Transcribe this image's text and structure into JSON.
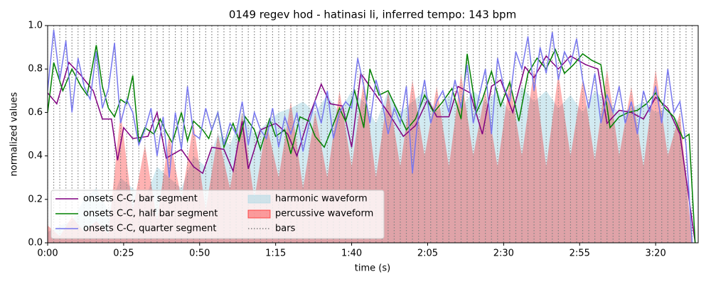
{
  "chart_data": {
    "type": "line",
    "title": "0149 regev hod - hatinasi li, inferred tempo: 143 bpm",
    "xlabel": "time (s)",
    "ylabel": "normalized values",
    "xlim": [
      0,
      214
    ],
    "ylim": [
      0,
      1
    ],
    "xticks": [
      {
        "value": 0,
        "label": "0:00"
      },
      {
        "value": 25,
        "label": "0:25"
      },
      {
        "value": 50,
        "label": "0:50"
      },
      {
        "value": 75,
        "label": "1:15"
      },
      {
        "value": 100,
        "label": "1:40"
      },
      {
        "value": 125,
        "label": "2:05"
      },
      {
        "value": 150,
        "label": "2:30"
      },
      {
        "value": 175,
        "label": "2:55"
      },
      {
        "value": 200,
        "label": "3:20"
      }
    ],
    "yticks": [
      {
        "value": 0,
        "label": "0.0"
      },
      {
        "value": 0.2,
        "label": "0.2"
      },
      {
        "value": 0.4,
        "label": "0.4"
      },
      {
        "value": 0.6,
        "label": "0.6"
      },
      {
        "value": 0.8,
        "label": "0.8"
      },
      {
        "value": 1,
        "label": "1.0"
      }
    ],
    "legend": "lower left",
    "areas": [
      {
        "name": "harmonic waveform",
        "color": "#add8e6",
        "x": [
          0,
          4,
          8,
          12,
          16,
          20,
          24,
          28,
          32,
          36,
          40,
          44,
          48,
          52,
          56,
          60,
          64,
          68,
          72,
          76,
          80,
          84,
          88,
          92,
          96,
          100,
          104,
          108,
          112,
          116,
          120,
          124,
          128,
          132,
          136,
          140,
          144,
          148,
          152,
          156,
          160,
          164,
          168,
          172,
          176,
          180,
          184,
          188,
          192,
          196,
          200,
          204,
          208,
          212
        ],
        "values": [
          0.05,
          0.08,
          0.1,
          0.2,
          0.25,
          0.15,
          0.3,
          0.25,
          0.2,
          0.35,
          0.3,
          0.25,
          0.4,
          0.35,
          0.5,
          0.45,
          0.6,
          0.5,
          0.55,
          0.6,
          0.62,
          0.65,
          0.6,
          0.68,
          0.6,
          0.7,
          0.65,
          0.55,
          0.7,
          0.6,
          0.65,
          0.7,
          0.6,
          0.68,
          0.62,
          0.7,
          0.65,
          0.7,
          0.6,
          0.72,
          0.65,
          0.7,
          0.62,
          0.68,
          0.6,
          0.7,
          0.65,
          0.6,
          0.62,
          0.65,
          0.6,
          0.62,
          0.55,
          0.0
        ]
      },
      {
        "name": "percussive waveform",
        "color": "#ff0000",
        "x": [
          0,
          4,
          8,
          12,
          16,
          20,
          24,
          28,
          32,
          36,
          40,
          44,
          48,
          52,
          56,
          60,
          64,
          68,
          72,
          76,
          80,
          84,
          88,
          92,
          96,
          100,
          104,
          108,
          112,
          116,
          120,
          124,
          128,
          132,
          136,
          140,
          144,
          148,
          152,
          156,
          160,
          164,
          168,
          172,
          176,
          180,
          184,
          188,
          192,
          196,
          200,
          204,
          208,
          212
        ],
        "values": [
          0.08,
          0.03,
          0.12,
          0.05,
          0.1,
          0.04,
          0.6,
          0.15,
          0.45,
          0.1,
          0.5,
          0.2,
          0.55,
          0.15,
          0.5,
          0.25,
          0.6,
          0.2,
          0.55,
          0.3,
          0.65,
          0.25,
          0.6,
          0.3,
          0.7,
          0.35,
          0.75,
          0.3,
          0.7,
          0.35,
          0.75,
          0.4,
          0.72,
          0.35,
          0.78,
          0.4,
          0.7,
          0.35,
          0.75,
          0.4,
          0.8,
          0.35,
          0.78,
          0.4,
          0.75,
          0.38,
          0.8,
          0.4,
          0.72,
          0.35,
          0.8,
          0.4,
          0.6,
          0.0
        ]
      }
    ],
    "bars": {
      "name": "bars",
      "color": "#808080",
      "x": [
        0,
        2,
        4,
        6,
        8,
        10,
        12,
        14,
        16,
        18,
        20,
        22,
        24,
        26,
        28,
        30,
        32,
        34,
        36,
        38,
        40,
        42,
        44,
        46,
        48,
        50,
        52,
        54,
        56,
        58,
        60,
        62,
        64,
        66,
        68,
        70,
        72,
        74,
        76,
        78,
        80,
        82,
        84,
        86,
        88,
        90,
        92,
        94,
        96,
        98,
        100,
        102,
        104,
        106,
        108,
        110,
        112,
        114,
        116,
        118,
        120,
        122,
        124,
        126,
        128,
        130,
        132,
        134,
        136,
        138,
        140,
        142,
        144,
        146,
        148,
        150,
        152,
        154,
        156,
        158,
        160,
        162,
        164,
        166,
        168,
        170,
        172,
        174,
        176,
        178,
        180,
        182,
        184,
        186,
        188,
        190,
        192,
        194,
        196,
        198,
        200,
        202,
        204,
        206,
        208,
        210,
        212
      ]
    },
    "series": [
      {
        "name": "onsets C-C, bar segment",
        "color": "#800080",
        "x": [
          0,
          3,
          7,
          11,
          15,
          18,
          21,
          23,
          25,
          28,
          33,
          36,
          39,
          44,
          48,
          51,
          54,
          58,
          61,
          64,
          66,
          70,
          75,
          79,
          82,
          86,
          90,
          93,
          97,
          100,
          103,
          107,
          112,
          117,
          121,
          125,
          128,
          132,
          135,
          139,
          143,
          146,
          149,
          153,
          157,
          160,
          164,
          168,
          172,
          177,
          181,
          184,
          188,
          192,
          196,
          200,
          204,
          208,
          213
        ],
        "values": [
          0.69,
          0.64,
          0.83,
          0.77,
          0.7,
          0.57,
          0.57,
          0.38,
          0.53,
          0.48,
          0.49,
          0.6,
          0.39,
          0.43,
          0.35,
          0.32,
          0.44,
          0.43,
          0.33,
          0.56,
          0.34,
          0.52,
          0.55,
          0.5,
          0.4,
          0.58,
          0.73,
          0.64,
          0.63,
          0.44,
          0.78,
          0.7,
          0.6,
          0.49,
          0.54,
          0.66,
          0.58,
          0.58,
          0.72,
          0.69,
          0.5,
          0.72,
          0.75,
          0.6,
          0.81,
          0.76,
          0.86,
          0.8,
          0.86,
          0.82,
          0.8,
          0.55,
          0.61,
          0.6,
          0.57,
          0.67,
          0.62,
          0.5,
          0.0
        ]
      },
      {
        "name": "onsets C-C, half bar segment",
        "color": "#008000",
        "x": [
          0,
          2,
          5,
          8,
          11,
          13,
          16,
          18,
          20,
          22,
          24,
          26,
          28,
          30,
          32,
          35,
          37,
          39,
          41,
          44,
          46,
          48,
          51,
          53,
          56,
          58,
          61,
          63,
          65,
          68,
          70,
          73,
          75,
          78,
          80,
          83,
          86,
          88,
          91,
          93,
          96,
          98,
          101,
          104,
          106,
          109,
          112,
          115,
          118,
          121,
          124,
          127,
          130,
          133,
          136,
          138,
          141,
          143,
          146,
          149,
          152,
          155,
          158,
          161,
          164,
          167,
          170,
          173,
          176,
          179,
          182,
          185,
          188,
          191,
          194,
          197,
          200,
          203,
          206,
          209,
          211,
          213
        ],
        "values": [
          0.6,
          0.83,
          0.7,
          0.8,
          0.72,
          0.68,
          0.91,
          0.72,
          0.62,
          0.58,
          0.66,
          0.64,
          0.77,
          0.46,
          0.53,
          0.5,
          0.57,
          0.51,
          0.46,
          0.6,
          0.47,
          0.56,
          0.52,
          0.48,
          0.6,
          0.44,
          0.55,
          0.47,
          0.58,
          0.52,
          0.43,
          0.57,
          0.49,
          0.52,
          0.41,
          0.58,
          0.56,
          0.49,
          0.44,
          0.51,
          0.62,
          0.56,
          0.7,
          0.53,
          0.8,
          0.68,
          0.7,
          0.61,
          0.52,
          0.57,
          0.68,
          0.6,
          0.65,
          0.71,
          0.57,
          0.87,
          0.6,
          0.66,
          0.79,
          0.63,
          0.74,
          0.56,
          0.78,
          0.85,
          0.8,
          0.89,
          0.78,
          0.82,
          0.87,
          0.84,
          0.82,
          0.53,
          0.58,
          0.6,
          0.61,
          0.64,
          0.69,
          0.62,
          0.58,
          0.48,
          0.5,
          0.0
        ]
      },
      {
        "name": "onsets C-C, quarter segment",
        "color": "#7777ee",
        "x": [
          0,
          2,
          4,
          6,
          8,
          10,
          12,
          14,
          16,
          18,
          20,
          22,
          24,
          26,
          28,
          30,
          32,
          34,
          36,
          38,
          40,
          42,
          44,
          46,
          48,
          50,
          52,
          54,
          56,
          58,
          60,
          62,
          64,
          66,
          68,
          70,
          72,
          74,
          76,
          78,
          80,
          82,
          84,
          86,
          88,
          90,
          92,
          94,
          96,
          98,
          100,
          102,
          104,
          106,
          108,
          110,
          112,
          114,
          116,
          118,
          120,
          122,
          124,
          126,
          128,
          130,
          132,
          134,
          136,
          138,
          140,
          142,
          144,
          146,
          148,
          150,
          152,
          154,
          156,
          158,
          160,
          162,
          164,
          166,
          168,
          170,
          172,
          174,
          176,
          178,
          180,
          182,
          184,
          186,
          188,
          190,
          192,
          194,
          196,
          198,
          200,
          202,
          204,
          206,
          208,
          210,
          212
        ],
        "values": [
          0.7,
          0.98,
          0.75,
          0.93,
          0.6,
          0.85,
          0.72,
          0.66,
          0.88,
          0.62,
          0.71,
          0.92,
          0.55,
          0.66,
          0.6,
          0.45,
          0.52,
          0.62,
          0.4,
          0.58,
          0.3,
          0.6,
          0.43,
          0.72,
          0.5,
          0.48,
          0.62,
          0.52,
          0.6,
          0.45,
          0.55,
          0.5,
          0.65,
          0.45,
          0.6,
          0.52,
          0.48,
          0.62,
          0.44,
          0.58,
          0.5,
          0.6,
          0.42,
          0.55,
          0.65,
          0.55,
          0.7,
          0.48,
          0.6,
          0.65,
          0.62,
          0.85,
          0.72,
          0.55,
          0.75,
          0.65,
          0.5,
          0.62,
          0.55,
          0.72,
          0.32,
          0.6,
          0.75,
          0.55,
          0.65,
          0.7,
          0.6,
          0.75,
          0.62,
          0.82,
          0.55,
          0.68,
          0.8,
          0.5,
          0.85,
          0.72,
          0.65,
          0.88,
          0.8,
          0.95,
          0.7,
          0.9,
          0.78,
          0.97,
          0.75,
          0.88,
          0.82,
          0.94,
          0.75,
          0.62,
          0.78,
          0.55,
          0.68,
          0.6,
          0.72,
          0.55,
          0.65,
          0.5,
          0.7,
          0.6,
          0.72,
          0.55,
          0.8,
          0.6,
          0.65,
          0.45,
          0.0
        ]
      }
    ]
  }
}
